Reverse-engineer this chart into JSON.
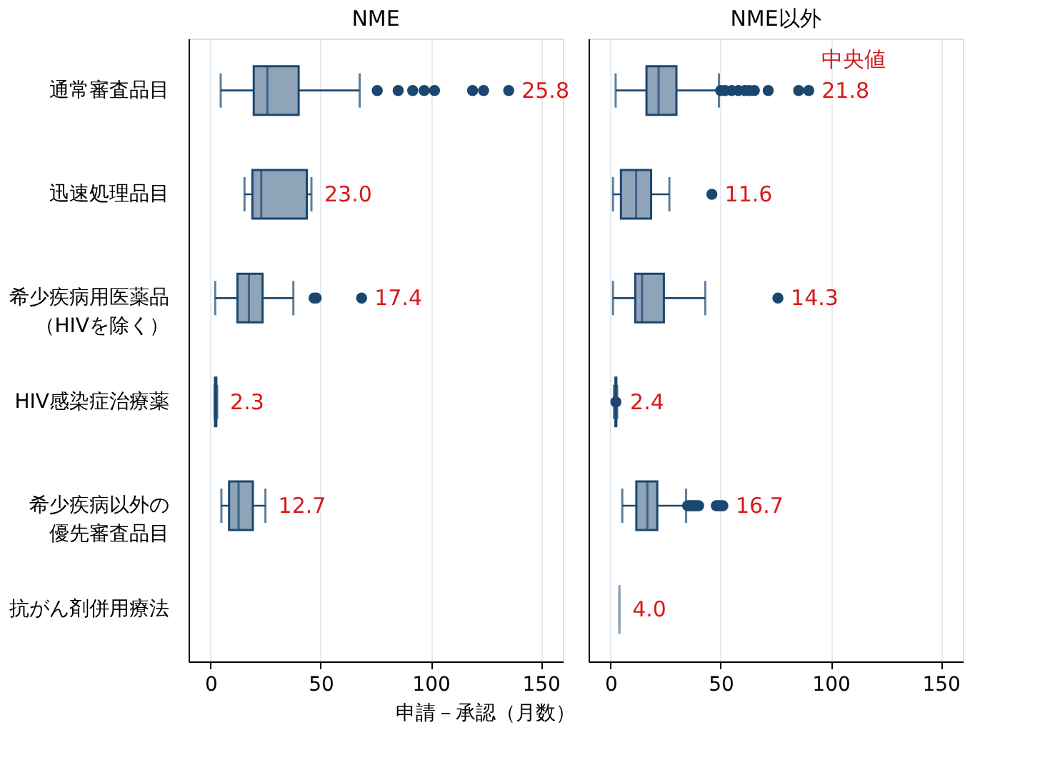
{
  "chart_data": [
    {
      "type": "box",
      "title": "NME",
      "xlabel": "申請－承認（月数）",
      "categories": [
        "通常審査品目",
        "迅速処理品目",
        "希少疾病用医薬品（HIVを除く）",
        "HIV感染症治療薬",
        "希少疾病以外の優先審査品目",
        "抗がん剤併用療法"
      ],
      "orientation": "horizontal",
      "xlim": [
        -10,
        160
      ],
      "xticks": [
        0,
        50,
        100,
        150
      ],
      "grid": "x",
      "series": [
        {
          "color": "#8fa3b9",
          "value_labels": [
            "25.8",
            "23.0",
            "17.4",
            "2.3",
            "12.7",
            null
          ],
          "boxes": [
            {
              "low": 4.6,
              "q1": 19.6,
              "median": 25.8,
              "q3": 40,
              "high": 67.7,
              "outliers": [
                75.7,
                85.2,
                91.8,
                97,
                101.7,
                119,
                124,
                135.4
              ]
            },
            {
              "low": 15.4,
              "q1": 19,
              "median": 23.0,
              "q3": 43.7,
              "high": 45.8
            },
            {
              "low": 2.1,
              "q1": 12.2,
              "median": 17.4,
              "q3": 23.6,
              "high": 37.6,
              "outliers": [
                47,
                48,
                68.6
              ]
            },
            {
              "low": 1.8,
              "q1": 2.0,
              "median": 2.3,
              "q3": 2.6,
              "high": 3.0
            },
            {
              "low": 4.9,
              "q1": 8.4,
              "median": 12.7,
              "q3": 19.2,
              "high": 24.9
            },
            null
          ]
        }
      ]
    },
    {
      "type": "box",
      "title": "NME以外",
      "categories": [
        "通常審査品目",
        "迅速処理品目",
        "希少疾病用医薬品（HIVを除く）",
        "HIV感染症治療薬",
        "希少疾病以外の優先審査品目",
        "抗がん剤併用療法"
      ],
      "tick_labels": "x",
      "orientation": "horizontal",
      "xlim": [
        -10,
        160
      ],
      "xticks": [
        0,
        50,
        100,
        150
      ],
      "grid": "x",
      "annotations": [
        "中央値"
      ],
      "series": [
        {
          "color": "#8fa3b9",
          "value_labels": [
            "21.8",
            "11.6",
            "14.3",
            "2.4",
            "16.7",
            "4.0"
          ],
          "boxes": [
            {
              "low": 2.3,
              "q1": 16.3,
              "median": 21.8,
              "q3": 29.9,
              "high": 49.2,
              "outliers": [
                50,
                52,
                55,
                58,
                61,
                63,
                65.3,
                71.6,
                85.4,
                90
              ]
            },
            {
              "low": 1.1,
              "q1": 4.7,
              "median": 11.6,
              "q3": 18.4,
              "high": 26.7,
              "outliers": [
                46
              ]
            },
            {
              "low": 1.1,
              "q1": 11.2,
              "median": 14.3,
              "q3": 24.2,
              "high": 43,
              "outliers": [
                76
              ]
            },
            {
              "low": 1.5,
              "q1": 2.2,
              "median": 2.4,
              "q3": 2.6,
              "high": 3.0,
              "outliers": [
                2.4
              ]
            },
            {
              "low": 5.3,
              "q1": 11.7,
              "median": 16.7,
              "q3": 21.2,
              "high": 34.3,
              "outliers": [
                35,
                36,
                37,
                38,
                39,
                40,
                48,
                49,
                50,
                51
              ]
            },
            {
              "low": 4.0,
              "q1": 4.0,
              "median": 4.0,
              "q3": 4.0,
              "high": 4.0
            }
          ]
        }
      ]
    }
  ]
}
